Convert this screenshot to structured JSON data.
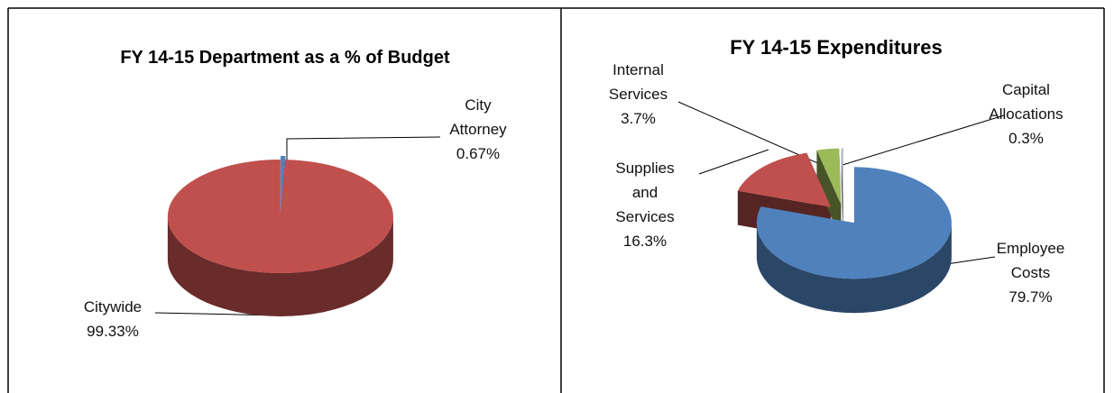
{
  "chart_data": [
    {
      "type": "pie",
      "title": "FY 14-15 Department as a % of Budget",
      "categories": [
        "City Attorney",
        "Citywide"
      ],
      "values": [
        0.67,
        99.33
      ],
      "value_labels": [
        "0.67%",
        "99.33%"
      ],
      "colors": [
        "#4f81bd",
        "#c0504d"
      ]
    },
    {
      "type": "pie",
      "title": "FY 14-15 Expenditures",
      "categories": [
        "Employee Costs",
        "Supplies and Services",
        "Internal Services",
        "Capital Allocations"
      ],
      "values": [
        79.7,
        16.3,
        3.7,
        0.3
      ],
      "value_labels": [
        "79.7%",
        "16.3%",
        "3.7%",
        "0.3%"
      ],
      "colors": [
        "#4f81bd",
        "#c0504d",
        "#9bbb59",
        "#b3b3c6"
      ]
    }
  ]
}
